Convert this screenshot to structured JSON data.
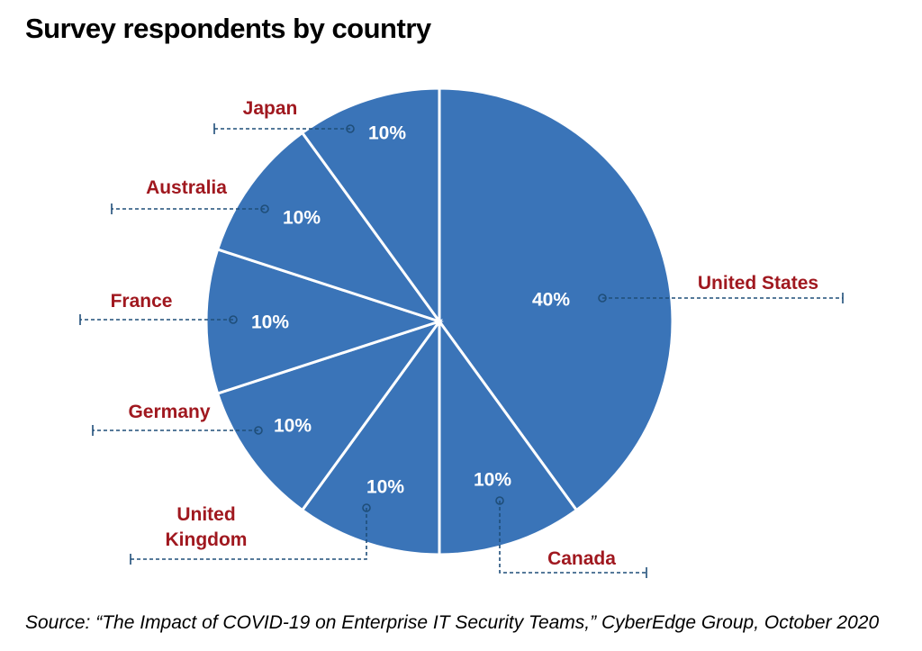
{
  "chart_data": {
    "type": "pie",
    "title": "Survey respondents by country",
    "source": "Source: “The Impact of COVID-19 on Enterprise IT Security Teams,” CyberEdge Group, October 2020",
    "categories": [
      "United States",
      "Canada",
      "United Kingdom",
      "Germany",
      "France",
      "Australia",
      "Japan"
    ],
    "category_lines": [
      [
        "United States"
      ],
      [
        "Canada"
      ],
      [
        "United",
        "Kingdom"
      ],
      [
        "Germany"
      ],
      [
        "France"
      ],
      [
        "Australia"
      ],
      [
        "Japan"
      ]
    ],
    "values": [
      40,
      10,
      10,
      10,
      10,
      10,
      10
    ],
    "value_labels": [
      "40%",
      "10%",
      "10%",
      "10%",
      "10%",
      "10%",
      "10%"
    ],
    "colors": {
      "slice": "#3a74b8",
      "slice_border": "#ffffff",
      "category_text": "#a0181f",
      "leader_line": "#1f4e79"
    },
    "start_angle": "12 o'clock",
    "direction": "clockwise",
    "legend": "none (labels placed beside slices with dashed leader lines)"
  }
}
